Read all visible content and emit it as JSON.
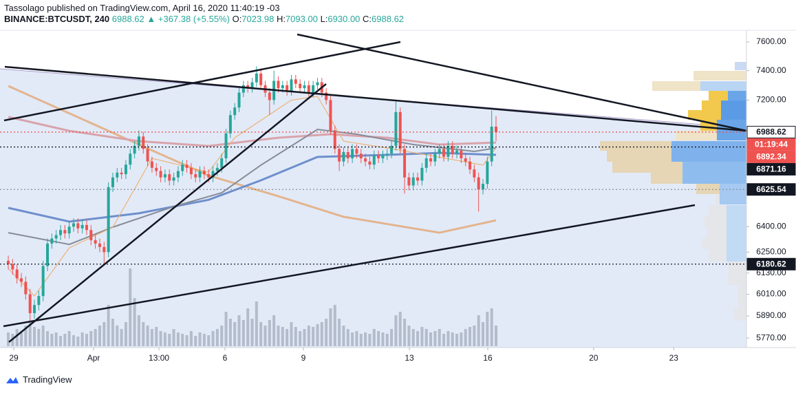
{
  "header": {
    "byline": "Tassolago published on TradingView.com, April 16, 2020 11:40:19 -03",
    "symbol": "BINANCE:BTCUSDT, 240",
    "change": "▲ +367.38 (+5.55%)",
    "ohlc_prefixes": [
      "O:",
      "H:",
      "L:",
      "C:"
    ]
  },
  "chart_data": {
    "type": "candlestick",
    "log_scale": true,
    "ylim": [
      5719,
      7683
    ],
    "yticks": [
      {
        "value": 7600,
        "label": "7600.00"
      },
      {
        "value": 7400,
        "label": "7400.00"
      },
      {
        "value": 7200,
        "label": "7200.00"
      },
      {
        "value": 6400,
        "label": "6400.00"
      },
      {
        "value": 6250,
        "label": "6250.00"
      },
      {
        "value": 6130,
        "label": "6130.00"
      },
      {
        "value": 6010,
        "label": "6010.00"
      },
      {
        "value": 5890,
        "label": "5890.00"
      },
      {
        "value": 5770,
        "label": "5770.00"
      }
    ],
    "xlim": [
      -1.9,
      169.5
    ],
    "xticks": [
      {
        "value": 1.26,
        "label": "29"
      },
      {
        "value": 19.59,
        "label": "Apr"
      },
      {
        "value": 34.6,
        "label": "13:00"
      },
      {
        "value": 49.76,
        "label": "6"
      },
      {
        "value": 67.77,
        "label": "9"
      },
      {
        "value": 92.1,
        "label": "13"
      },
      {
        "value": 110.1,
        "label": "16"
      },
      {
        "value": 134.4,
        "label": "20"
      },
      {
        "value": 152.8,
        "label": "23"
      }
    ],
    "up_color": "#26a69a",
    "down_color": "#ef5350",
    "volume_color": "#b3bccb",
    "last_candle_labels": [
      "7023.98",
      "7093.00",
      "6930.00",
      "6988.62"
    ],
    "candles": [
      [
        6200,
        6230,
        6150,
        6180
      ],
      [
        6180,
        6210,
        6120,
        6150
      ],
      [
        6150,
        6180,
        6070,
        6100
      ],
      [
        6100,
        6130,
        6050,
        6080
      ],
      [
        6080,
        6110,
        5980,
        6010
      ],
      [
        6010,
        6040,
        5860,
        5905
      ],
      [
        5905,
        5980,
        5875,
        5950
      ],
      [
        5950,
        6030,
        5920,
        6000
      ],
      [
        6000,
        6200,
        5970,
        6170
      ],
      [
        6170,
        6330,
        6140,
        6300
      ],
      [
        6300,
        6360,
        6270,
        6330
      ],
      [
        6330,
        6380,
        6300,
        6350
      ],
      [
        6350,
        6410,
        6320,
        6380
      ],
      [
        6380,
        6410,
        6330,
        6360
      ],
      [
        6360,
        6430,
        6330,
        6400
      ],
      [
        6400,
        6450,
        6370,
        6420
      ],
      [
        6420,
        6450,
        6360,
        6390
      ],
      [
        6390,
        6440,
        6360,
        6410
      ],
      [
        6410,
        6440,
        6350,
        6380
      ],
      [
        6380,
        6410,
        6290,
        6320
      ],
      [
        6320,
        6350,
        6270,
        6300
      ],
      [
        6300,
        6330,
        6250,
        6280
      ],
      [
        6280,
        6310,
        6180,
        6250
      ],
      [
        6250,
        6670,
        6220,
        6640
      ],
      [
        6640,
        6730,
        6610,
        6700
      ],
      [
        6700,
        6760,
        6670,
        6730
      ],
      [
        6730,
        6760,
        6690,
        6720
      ],
      [
        6720,
        6810,
        6690,
        6780
      ],
      [
        6780,
        6880,
        6750,
        6850
      ],
      [
        6850,
        6930,
        6820,
        6900
      ],
      [
        6900,
        7000,
        6870,
        6960
      ],
      [
        6960,
        6990,
        6850,
        6880
      ],
      [
        6880,
        6910,
        6770,
        6800
      ],
      [
        6800,
        6830,
        6730,
        6760
      ],
      [
        6760,
        6790,
        6710,
        6740
      ],
      [
        6740,
        6770,
        6670,
        6700
      ],
      [
        6700,
        6750,
        6670,
        6720
      ],
      [
        6720,
        6750,
        6650,
        6680
      ],
      [
        6680,
        6730,
        6650,
        6700
      ],
      [
        6700,
        6770,
        6670,
        6740
      ],
      [
        6740,
        6810,
        6710,
        6780
      ],
      [
        6780,
        6810,
        6730,
        6760
      ],
      [
        6760,
        6790,
        6690,
        6720
      ],
      [
        6720,
        6750,
        6670,
        6700
      ],
      [
        6700,
        6770,
        6670,
        6740
      ],
      [
        6740,
        6770,
        6690,
        6720
      ],
      [
        6720,
        6750,
        6670,
        6700
      ],
      [
        6700,
        6770,
        6670,
        6740
      ],
      [
        6740,
        6790,
        6710,
        6760
      ],
      [
        6760,
        6850,
        6730,
        6820
      ],
      [
        6820,
        7010,
        6790,
        6980
      ],
      [
        6980,
        7130,
        6950,
        7100
      ],
      [
        7100,
        7180,
        7070,
        7150
      ],
      [
        7150,
        7280,
        7120,
        7250
      ],
      [
        7250,
        7330,
        7220,
        7300
      ],
      [
        7300,
        7330,
        7250,
        7280
      ],
      [
        7280,
        7350,
        7250,
        7320
      ],
      [
        7320,
        7430,
        7290,
        7380
      ],
      [
        7380,
        7410,
        7270,
        7300
      ],
      [
        7300,
        7330,
        7220,
        7250
      ],
      [
        7250,
        7280,
        7100,
        7200
      ],
      [
        7200,
        7400,
        7170,
        7330
      ],
      [
        7330,
        7360,
        7250,
        7280
      ],
      [
        7280,
        7330,
        7250,
        7300
      ],
      [
        7300,
        7330,
        7230,
        7260
      ],
      [
        7260,
        7370,
        7230,
        7340
      ],
      [
        7340,
        7370,
        7280,
        7310
      ],
      [
        7310,
        7340,
        7250,
        7280
      ],
      [
        7280,
        7330,
        7250,
        7300
      ],
      [
        7300,
        7330,
        7220,
        7250
      ],
      [
        7250,
        7330,
        7220,
        7300
      ],
      [
        7300,
        7350,
        7270,
        7320
      ],
      [
        7320,
        7350,
        7220,
        7250
      ],
      [
        7250,
        7280,
        7170,
        7200
      ],
      [
        7200,
        7230,
        6970,
        7000
      ],
      [
        7000,
        7030,
        6850,
        6880
      ],
      [
        6880,
        6910,
        6740,
        6800
      ],
      [
        6800,
        6890,
        6770,
        6860
      ],
      [
        6860,
        6890,
        6790,
        6820
      ],
      [
        6820,
        6910,
        6790,
        6880
      ],
      [
        6880,
        6910,
        6820,
        6850
      ],
      [
        6850,
        6880,
        6790,
        6820
      ],
      [
        6820,
        6850,
        6770,
        6800
      ],
      [
        6800,
        6830,
        6750,
        6780
      ],
      [
        6780,
        6870,
        6750,
        6840
      ],
      [
        6840,
        6870,
        6790,
        6820
      ],
      [
        6820,
        6870,
        6790,
        6840
      ],
      [
        6840,
        6880,
        6810,
        6850
      ],
      [
        6850,
        6930,
        6820,
        6900
      ],
      [
        6900,
        7190,
        6870,
        7120
      ],
      [
        7120,
        7150,
        6850,
        6880
      ],
      [
        6880,
        6910,
        6600,
        6700
      ],
      [
        6700,
        6730,
        6620,
        6650
      ],
      [
        6650,
        6730,
        6620,
        6700
      ],
      [
        6700,
        6730,
        6650,
        6680
      ],
      [
        6680,
        6790,
        6650,
        6760
      ],
      [
        6760,
        6850,
        6730,
        6820
      ],
      [
        6820,
        6850,
        6770,
        6800
      ],
      [
        6800,
        6880,
        6770,
        6850
      ],
      [
        6850,
        6910,
        6820,
        6880
      ],
      [
        6880,
        6910,
        6800,
        6830
      ],
      [
        6830,
        6930,
        6800,
        6900
      ],
      [
        6900,
        6930,
        6820,
        6850
      ],
      [
        6850,
        6900,
        6820,
        6870
      ],
      [
        6870,
        6900,
        6790,
        6820
      ],
      [
        6820,
        6850,
        6770,
        6800
      ],
      [
        6800,
        6830,
        6720,
        6750
      ],
      [
        6750,
        6780,
        6670,
        6700
      ],
      [
        6700,
        6730,
        6490,
        6625
      ],
      [
        6625,
        6690,
        6595,
        6660
      ],
      [
        6660,
        6830,
        6630,
        6800
      ],
      [
        6800,
        7130,
        6770,
        7023.98
      ],
      [
        7023.98,
        7093,
        6930,
        6988.62
      ]
    ],
    "volume": [
      20,
      18,
      25,
      22,
      30,
      35,
      28,
      25,
      30,
      22,
      18,
      20,
      15,
      18,
      22,
      16,
      14,
      20,
      18,
      22,
      25,
      30,
      35,
      60,
      40,
      30,
      25,
      35,
      113,
      70,
      45,
      35,
      30,
      25,
      28,
      22,
      20,
      18,
      25,
      20,
      18,
      16,
      22,
      15,
      20,
      18,
      16,
      22,
      25,
      30,
      50,
      40,
      35,
      45,
      38,
      55,
      40,
      65,
      35,
      30,
      38,
      45,
      30,
      28,
      25,
      35,
      28,
      22,
      25,
      30,
      28,
      32,
      35,
      40,
      55,
      60,
      40,
      30,
      25,
      20,
      22,
      18,
      20,
      18,
      25,
      22,
      20,
      18,
      25,
      45,
      50,
      40,
      30,
      25,
      22,
      28,
      25,
      20,
      22,
      25,
      18,
      22,
      20,
      18,
      20,
      25,
      28,
      30,
      45,
      35,
      50,
      55,
      30
    ],
    "overlays": [
      {
        "color": "#e3b48e",
        "width": 3,
        "x": [
          0,
          30,
          46,
          62,
          77,
          99,
          112
        ],
        "values": [
          7295,
          6908,
          6712,
          6584,
          6459,
          6364,
          6438
        ]
      },
      {
        "color": "#6e8fcc",
        "width": 3,
        "x": [
          0,
          14,
          30,
          46,
          58,
          71,
          87,
          99,
          112
        ],
        "values": [
          6513,
          6430,
          6480,
          6562,
          6682,
          6829,
          6842,
          6855,
          6842
        ]
      },
      {
        "color": "#d9a3ab",
        "width": 3,
        "x": [
          0,
          14,
          30,
          46,
          62,
          74,
          87,
          99,
          112
        ],
        "values": [
          7088,
          6997,
          6930,
          6899,
          6952,
          6975,
          6952,
          6908,
          6921
        ]
      },
      {
        "color": "#868c97",
        "width": 2,
        "x": [
          0,
          14,
          24,
          38,
          49,
          58,
          71,
          80,
          93,
          107,
          112
        ],
        "values": [
          6364,
          6295,
          6397,
          6521,
          6605,
          6777,
          7006,
          6975,
          6908,
          6864,
          6886
        ]
      },
      {
        "color": "#eeb274",
        "width": 1.2,
        "x": [
          0,
          6,
          14,
          24,
          33,
          46,
          52,
          65,
          71,
          77,
          87,
          96,
          109,
          112
        ],
        "values": [
          6156,
          6000,
          6275,
          6397,
          6820,
          6734,
          6952,
          7200,
          7225,
          6930,
          6886,
          6842,
          6777,
          6886
        ]
      }
    ],
    "price_labels": [
      {
        "value": 6988.62,
        "label": "6988.62",
        "bg": "#ffffff",
        "fg": "#131722",
        "line": "#ef5350"
      },
      {
        "value": 6892.34,
        "label": "6892.34",
        "bg": "#ef5350",
        "fg": "#ffffff",
        "line": "#131722"
      },
      {
        "value": 6871.16,
        "label": "6871.16",
        "bg": "#131722",
        "fg": "#ffffff"
      },
      {
        "value": 6625.54,
        "label": "6625.54",
        "bg": "#131722",
        "fg": "#ffffff",
        "line": "#8a8f99"
      },
      {
        "value": 6180.62,
        "label": "6180.62",
        "bg": "#131722",
        "fg": "#ffffff",
        "line": "#131722"
      }
    ],
    "countdown": {
      "label": "01:19:44",
      "bg": "#ef5350",
      "fg": "#ffffff"
    }
  },
  "footer": {
    "brand": "TradingView"
  }
}
